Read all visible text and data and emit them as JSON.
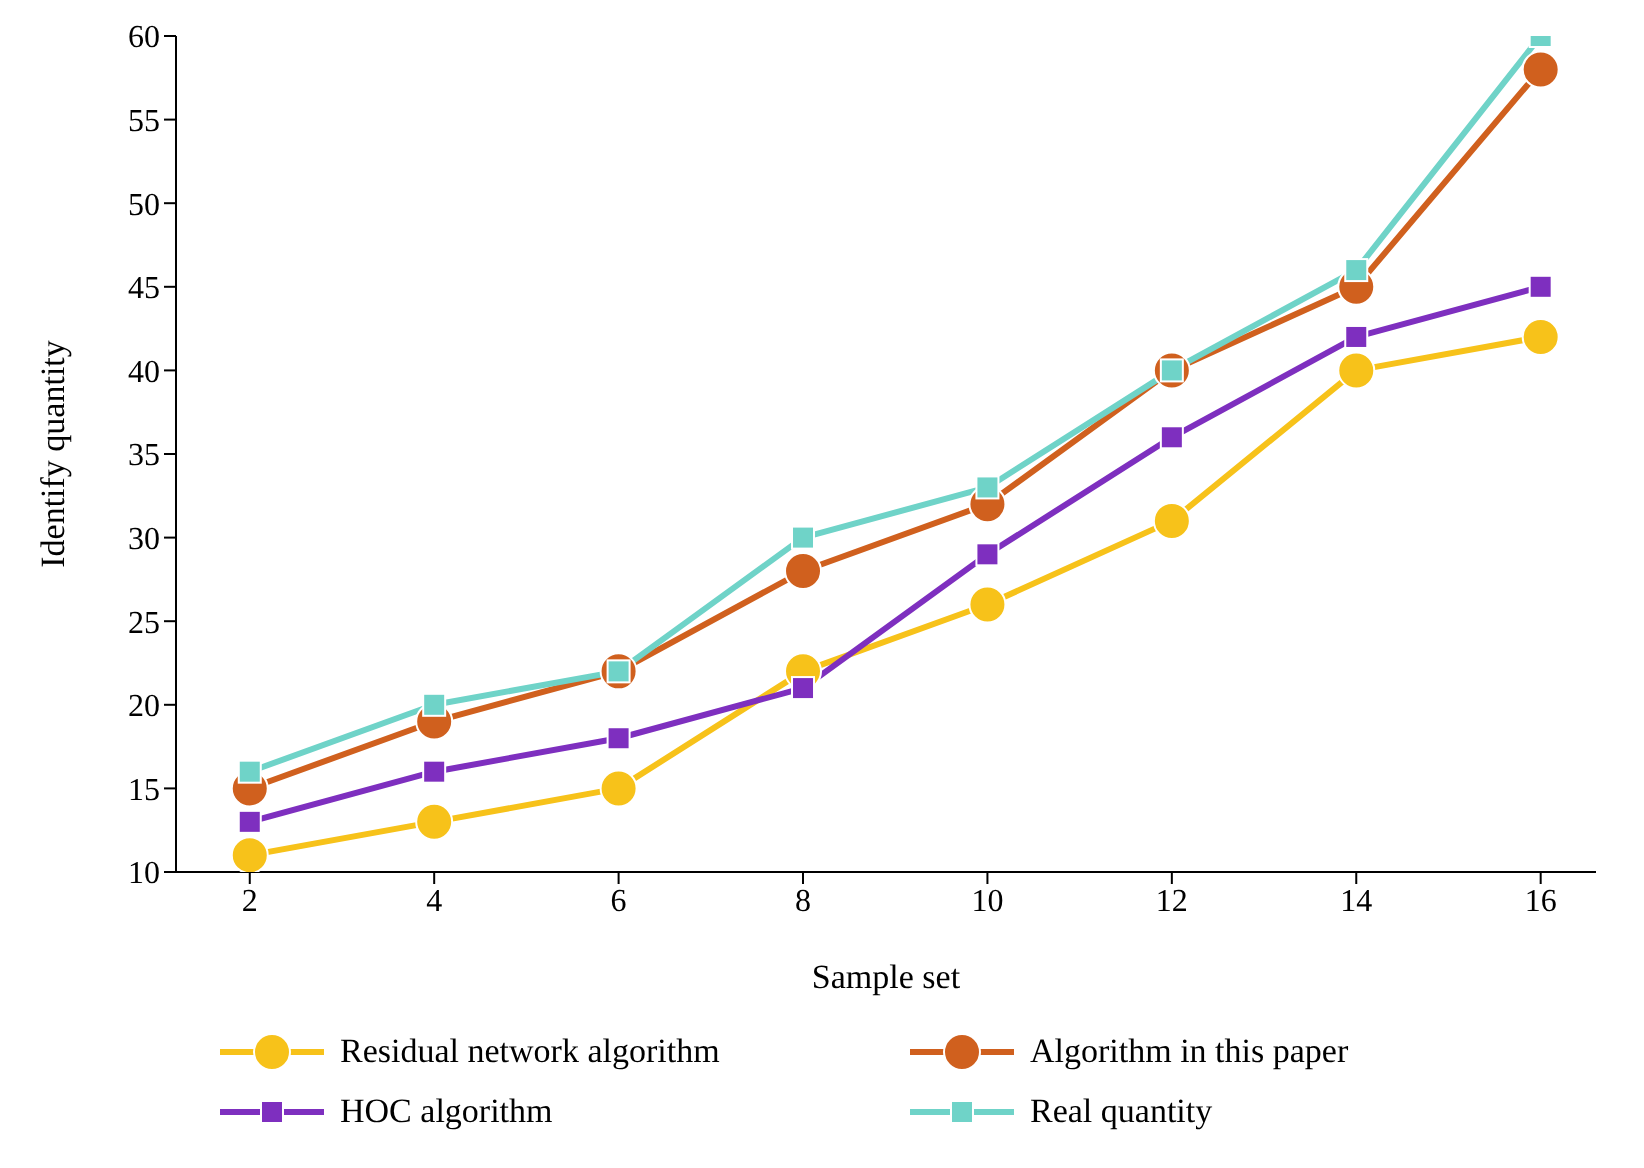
{
  "chart_data": {
    "type": "line",
    "xlabel": "Sample set",
    "ylabel": "Identify quantity",
    "x": [
      2,
      4,
      6,
      8,
      10,
      12,
      14,
      16
    ],
    "xlim": [
      1.2,
      16.6
    ],
    "xticks": [
      2,
      4,
      6,
      8,
      10,
      12,
      14,
      16
    ],
    "ylim": [
      10,
      60
    ],
    "yticks": [
      10,
      15,
      20,
      25,
      30,
      35,
      40,
      45,
      50,
      55,
      60
    ],
    "grid": false,
    "legend": "bottom",
    "line_style": "solid",
    "series": [
      {
        "name": "Residual network algorithm",
        "color": "#f7c21a",
        "marker": "circle",
        "values": [
          11,
          13,
          15,
          22,
          26,
          31,
          40,
          42
        ]
      },
      {
        "name": "Algorithm in this paper",
        "color": "#d0601e",
        "marker": "circle",
        "values": [
          15,
          19,
          22,
          28,
          32,
          40,
          45,
          58
        ]
      },
      {
        "name": "HOC algorithm",
        "color": "#7e2fbf",
        "marker": "square",
        "values": [
          13,
          16,
          18,
          21,
          29,
          36,
          42,
          45
        ]
      },
      {
        "name": "Real quantity",
        "color": "#6fd3c8",
        "marker": "square",
        "values": [
          16,
          20,
          22,
          30,
          33,
          40,
          46,
          60
        ]
      }
    ]
  }
}
